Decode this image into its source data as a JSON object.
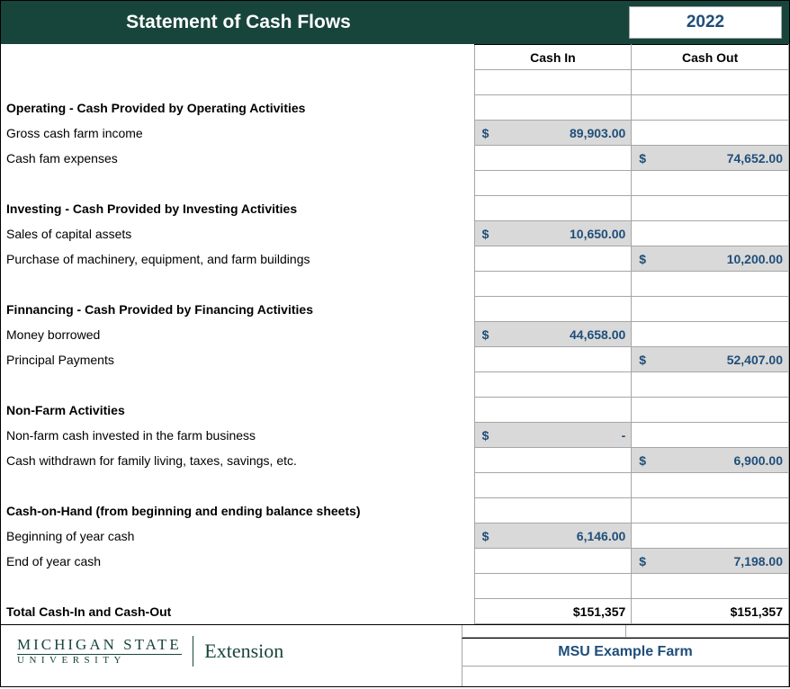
{
  "header": {
    "title": "Statement of Cash Flows",
    "year": "2022",
    "bg_color": "#18453b",
    "title_color": "#ffffff",
    "year_color": "#1f4e79"
  },
  "columns": {
    "cash_in": "Cash In",
    "cash_out": "Cash Out"
  },
  "sections": [
    {
      "heading": "Operating - Cash Provided by Operating Activities",
      "rows": [
        {
          "label": "Gross cash farm income",
          "cash_in": "89,903.00",
          "cash_out": null
        },
        {
          "label": "Cash fam expenses",
          "cash_in": null,
          "cash_out": "74,652.00"
        }
      ]
    },
    {
      "heading": "Investing - Cash Provided by Investing Activities",
      "rows": [
        {
          "label": "Sales of capital assets",
          "cash_in": "10,650.00",
          "cash_out": null
        },
        {
          "label": "Purchase of machinery, equipment, and farm buildings",
          "cash_in": null,
          "cash_out": "10,200.00"
        }
      ]
    },
    {
      "heading": "Finnancing - Cash Provided by Financing Activities",
      "rows": [
        {
          "label": "Money borrowed",
          "cash_in": "44,658.00",
          "cash_out": null
        },
        {
          "label": "Principal Payments",
          "cash_in": null,
          "cash_out": "52,407.00"
        }
      ]
    },
    {
      "heading": "Non-Farm Activities",
      "rows": [
        {
          "label": "Non-farm cash invested in the farm business",
          "cash_in": "-",
          "cash_out": null
        },
        {
          "label": "Cash withdrawn for family living, taxes, savings, etc.",
          "cash_in": null,
          "cash_out": "6,900.00"
        }
      ]
    },
    {
      "heading": "Cash-on-Hand (from beginning and ending balance sheets)",
      "rows": [
        {
          "label": "Beginning of year cash",
          "cash_in": "6,146.00",
          "cash_out": null
        },
        {
          "label": "End of year cash",
          "cash_in": null,
          "cash_out": "7,198.00"
        }
      ]
    }
  ],
  "totals": {
    "label": "Total Cash-In and Cash-Out",
    "cash_in": "$151,357",
    "cash_out": "$151,357"
  },
  "footer": {
    "logo_line1": "MICHIGAN STATE",
    "logo_line2": "UNIVERSITY",
    "logo_ext": "Extension",
    "farm_name": "MSU Example Farm"
  },
  "style": {
    "value_color": "#1f4e79",
    "shade_color": "#d9d9d9",
    "border_color": "#a6a6a6",
    "currency_symbol": "$"
  }
}
